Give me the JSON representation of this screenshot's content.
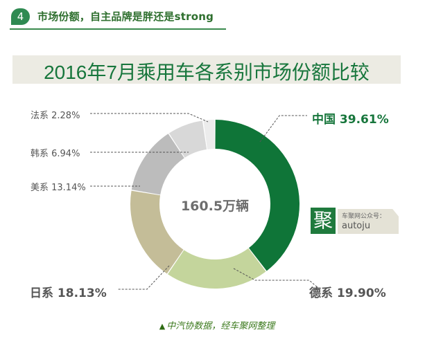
{
  "header": {
    "badge_number": "4",
    "title": "市场份额，自主品牌是胖还是strong"
  },
  "title_bar": {
    "title": "2016年7月乘用车各系别市场份额比较"
  },
  "center_label": "160.5万辆",
  "labels": {
    "china": "中国  39.61%",
    "germany": "德系  19.90%",
    "japan": "日系  18.13%",
    "usa": "美系  13.14%",
    "korea": "韩系  6.94%",
    "france": "法系  2.28%"
  },
  "watermark": {
    "glyph": "聚",
    "line1": "车聚网公众号：",
    "line2": "autoju"
  },
  "caption": {
    "marker": "▲",
    "text": "中汽协数据，经车聚网整理"
  },
  "colors": {
    "china": "#0f7538",
    "germany": "#c4d59c",
    "japan": "#c4bd98",
    "usa": "#bcbcbc",
    "korea": "#d8d8d8",
    "france": "#ececec",
    "accent": "#17763c"
  },
  "chart_data": {
    "type": "pie",
    "variant": "donut",
    "title": "2016年7月乘用车各系别市场份额比较",
    "center_text": "160.5万辆",
    "categories": [
      "中国",
      "德系",
      "日系",
      "美系",
      "韩系",
      "法系"
    ],
    "values": [
      39.61,
      19.9,
      18.13,
      13.14,
      6.94,
      2.28
    ],
    "unit": "%",
    "start_angle": "12 o'clock",
    "direction": "clockwise",
    "legend": "inline leader-line labels",
    "source_note": "中汽协数据，经车聚网整理"
  }
}
